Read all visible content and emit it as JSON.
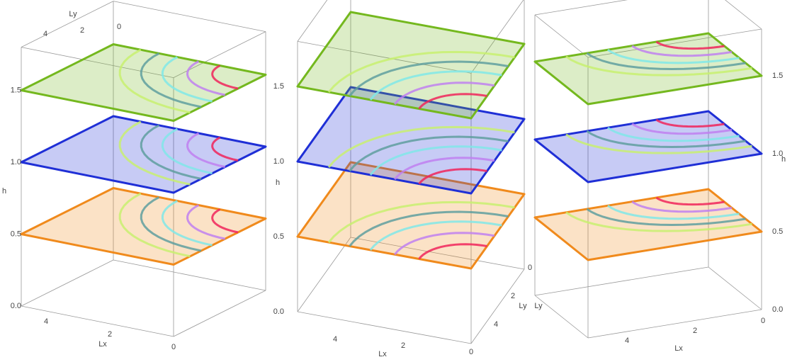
{
  "chart_data": [
    {
      "type": "planes3d",
      "xlabel": "Lx",
      "ylabel": "Ly",
      "zlabel": "h",
      "xlim": [
        0,
        5
      ],
      "ylim": [
        0,
        5
      ],
      "zlim": [
        0,
        1.8
      ],
      "xticks": [
        0,
        2,
        4
      ],
      "yticks": [
        0,
        2,
        4
      ],
      "zticks": [
        {
          "value": 0,
          "label": "0.0"
        },
        0.5,
        {
          "value": 1,
          "label": "1.0"
        },
        1.5
      ],
      "levels": [
        0.5,
        1,
        1.5
      ],
      "level_colors": [
        "#f08a1c",
        "#1f2fd6",
        "#74b81e"
      ]
    },
    {
      "type": "planes3d",
      "xlabel": "Lx",
      "ylabel": "Ly",
      "zlabel": "h",
      "xlim": [
        0,
        5
      ],
      "ylim": [
        0,
        5
      ],
      "zlim": [
        0,
        1.8
      ],
      "xticks": [
        0,
        2,
        4
      ],
      "yticks": [
        0,
        2,
        4
      ],
      "zticks": [
        {
          "value": 0,
          "label": "0.0"
        },
        0.5,
        {
          "value": 1,
          "label": "1.0"
        },
        1.5
      ],
      "levels": [
        0.5,
        1,
        1.5
      ],
      "level_colors": [
        "#f08a1c",
        "#1f2fd6",
        "#74b81e"
      ]
    },
    {
      "type": "planes3d",
      "xlabel": "Lx",
      "ylabel": "Ly",
      "zlabel": "h",
      "xlim": [
        0,
        5
      ],
      "ylim": [
        0,
        5
      ],
      "zlim": [
        0,
        1.8
      ],
      "xticks": [
        0,
        2,
        4
      ],
      "zticks": [
        {
          "value": 0,
          "label": "0.0"
        },
        0.5,
        {
          "value": 1,
          "label": "1.0"
        },
        1.5
      ],
      "levels": [
        0.5,
        1,
        1.5
      ],
      "level_colors": [
        "#f08a1c",
        "#1f2fd6",
        "#74b81e"
      ]
    }
  ]
}
